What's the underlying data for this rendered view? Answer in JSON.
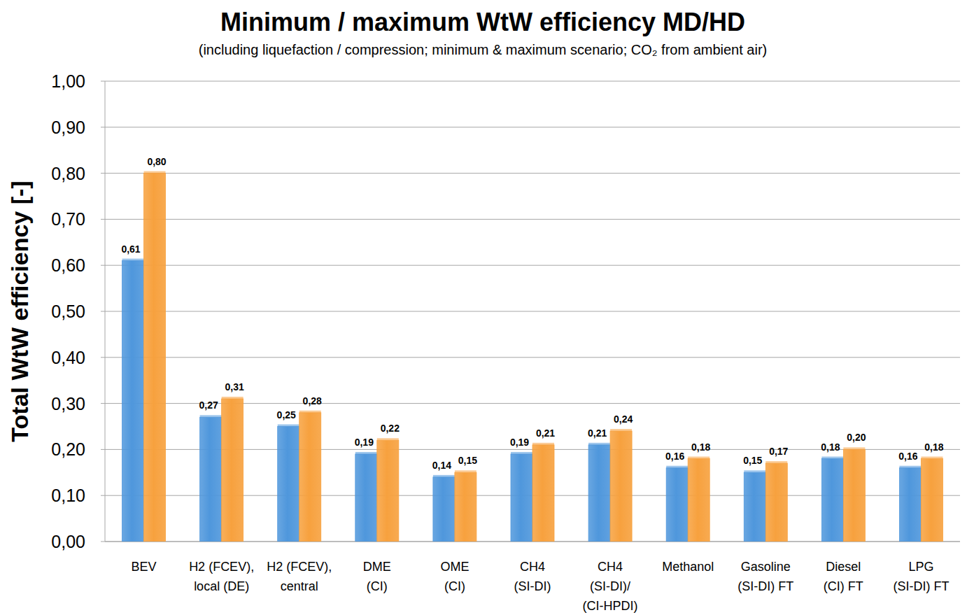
{
  "chart_data": {
    "type": "bar",
    "title": "Minimum / maximum WtW efficiency MD/HD",
    "subtitle": "(including liquefaction / compression; minimum & maximum scenario; CO₂ from ambient air)",
    "y_label": "Total WtW efficiency [-]",
    "categories": [
      "BEV",
      "H2 (FCEV),\nlocal (DE)",
      "H2 (FCEV),\ncentral",
      "DME\n(CI)",
      "OME\n(CI)",
      "CH4\n(SI-DI)",
      "CH4\n(SI-DI)/\n(CI-HPDI)",
      "Methanol",
      "Gasoline\n(SI-DI) FT",
      "Diesel\n(CI) FT",
      "LPG\n(SI-DI) FT"
    ],
    "series": [
      {
        "color": "#4f97dc",
        "values": [
          0.61,
          0.27,
          0.25,
          0.19,
          0.14,
          0.19,
          0.21,
          0.16,
          0.15,
          0.18,
          0.16
        ],
        "value_labels": [
          "0,61",
          "0,27",
          "0,25",
          "0,19",
          "0,14",
          "0,19",
          "0,21",
          "0,16",
          "0,15",
          "0,18",
          "0,16"
        ]
      },
      {
        "color": "#f7a13e",
        "values": [
          0.8,
          0.31,
          0.28,
          0.22,
          0.15,
          0.21,
          0.24,
          0.18,
          0.17,
          0.2,
          0.18
        ],
        "value_labels": [
          "0,80",
          "0,31",
          "0,28",
          "0,22",
          "0,15",
          "0,21",
          "0,24",
          "0,18",
          "0,17",
          "0,20",
          "0,18"
        ]
      }
    ],
    "ylim": [
      0,
      1
    ],
    "yticks": [
      {
        "value": 0,
        "label": "0,00"
      },
      {
        "value": 0.1,
        "label": "0,10"
      },
      {
        "value": 0.2,
        "label": "0,20"
      },
      {
        "value": 0.3,
        "label": "0,30"
      },
      {
        "value": 0.4,
        "label": "0,40"
      },
      {
        "value": 0.5,
        "label": "0,50"
      },
      {
        "value": 0.6,
        "label": "0,60"
      },
      {
        "value": 0.7,
        "label": "0,70"
      },
      {
        "value": 0.8,
        "label": "0,80"
      },
      {
        "value": 0.9,
        "label": "0,90"
      },
      {
        "value": 1,
        "label": "1,00"
      }
    ],
    "grid": true,
    "data_labels": true
  }
}
